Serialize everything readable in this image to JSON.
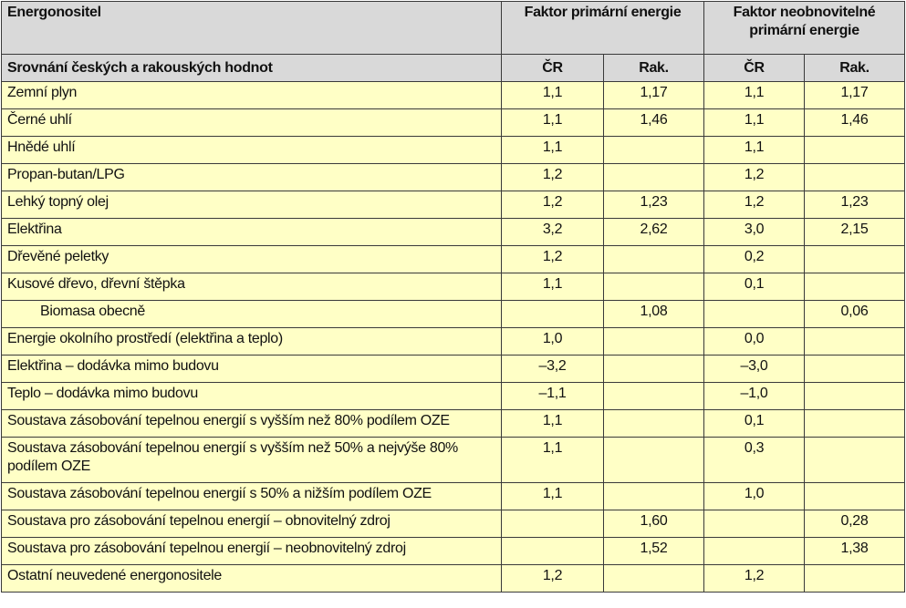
{
  "header": {
    "carrier": "Energonositel",
    "group_primary": "Faktor primární energie",
    "group_nonrenewable": "Faktor neobnovitelné primární energie",
    "subtitle": "Srovnání českých a rakouských hodnot",
    "col_cr": "ČR",
    "col_rak": "Rak."
  },
  "rows": [
    {
      "label": "Zemní plyn",
      "p_cr": "1,1",
      "p_rak": "1,17",
      "n_cr": "1,1",
      "n_rak": "1,17"
    },
    {
      "label": "Černé uhlí",
      "p_cr": "1,1",
      "p_rak": "1,46",
      "n_cr": "1,1",
      "n_rak": "1,46"
    },
    {
      "label": "Hnědé uhlí",
      "p_cr": "1,1",
      "p_rak": "",
      "n_cr": "1,1",
      "n_rak": ""
    },
    {
      "label": "Propan-butan/LPG",
      "p_cr": "1,2",
      "p_rak": "",
      "n_cr": "1,2",
      "n_rak": ""
    },
    {
      "label": "Lehký topný olej",
      "p_cr": "1,2",
      "p_rak": "1,23",
      "n_cr": "1,2",
      "n_rak": "1,23"
    },
    {
      "label": "Elektřina",
      "p_cr": "3,2",
      "p_rak": "2,62",
      "n_cr": "3,0",
      "n_rak": "2,15"
    },
    {
      "label": "Dřevěné peletky",
      "p_cr": "1,2",
      "p_rak": "",
      "n_cr": "0,2",
      "n_rak": ""
    },
    {
      "label": "Kusové dřevo, dřevní štěpka",
      "p_cr": "1,1",
      "p_rak": "",
      "n_cr": "0,1",
      "n_rak": ""
    },
    {
      "label": "Biomasa obecně",
      "p_cr": "",
      "p_rak": "1,08",
      "n_cr": "",
      "n_rak": "0,06"
    },
    {
      "label": "Energie okolního prostředí (elektřina a teplo)",
      "p_cr": "1,0",
      "p_rak": "",
      "n_cr": "0,0",
      "n_rak": ""
    },
    {
      "label": "Elektřina – dodávka mimo budovu",
      "p_cr": "–3,2",
      "p_rak": "",
      "n_cr": "–3,0",
      "n_rak": ""
    },
    {
      "label": "Teplo – dodávka mimo budovu",
      "p_cr": "–1,1",
      "p_rak": "",
      "n_cr": "–1,0",
      "n_rak": ""
    },
    {
      "label": "Soustava zásobování tepelnou energií s vyšším než 80% podílem OZE",
      "p_cr": "1,1",
      "p_rak": "",
      "n_cr": "0,1",
      "n_rak": ""
    },
    {
      "label": "Soustava zásobování tepelnou energií s vyšším než 50% a nejvýše 80% podílem OZE",
      "p_cr": "1,1",
      "p_rak": "",
      "n_cr": "0,3",
      "n_rak": ""
    },
    {
      "label": "Soustava zásobování tepelnou energií s 50% a nižším podílem OZE",
      "p_cr": "1,1",
      "p_rak": "",
      "n_cr": "1,0",
      "n_rak": ""
    },
    {
      "label": "Soustava pro zásobování tepelnou energií – obnovitelný zdroj",
      "p_cr": "",
      "p_rak": "1,60",
      "n_cr": "",
      "n_rak": "0,28"
    },
    {
      "label": "Soustava pro zásobování tepelnou energií – neobnovitelný zdroj",
      "p_cr": "",
      "p_rak": "1,52",
      "n_cr": "",
      "n_rak": "1,38"
    },
    {
      "label": "Ostatní neuvedené energonositele",
      "p_cr": "1,2",
      "p_rak": "",
      "n_cr": "1,2",
      "n_rak": ""
    }
  ]
}
